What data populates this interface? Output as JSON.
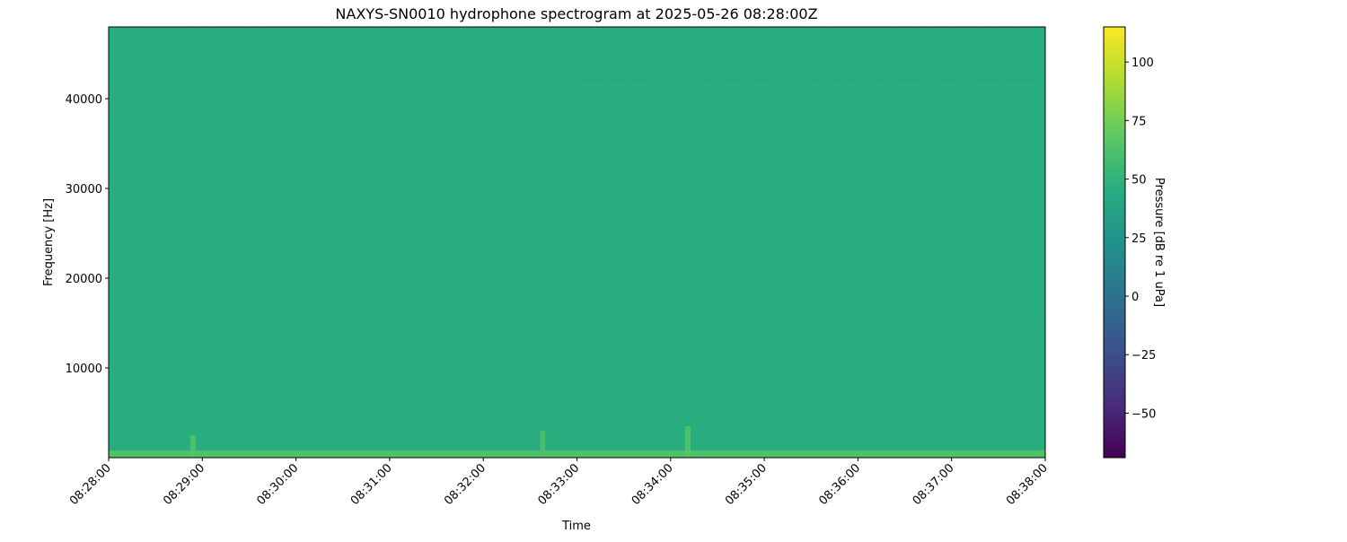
{
  "chart_data": {
    "type": "heatmap",
    "title": "NAXYS-SN0010 hydrophone spectrogram at 2025-05-26 08:28:00Z",
    "xlabel": "Time",
    "ylabel": "Frequency [Hz]",
    "x_ticks": [
      "08:28:00",
      "08:29:00",
      "08:30:00",
      "08:31:00",
      "08:32:00",
      "08:33:00",
      "08:34:00",
      "08:35:00",
      "08:36:00",
      "08:37:00",
      "08:38:00"
    ],
    "xlim_seconds_from_08_28_00": [
      0,
      600
    ],
    "y_ticks": [
      10000,
      20000,
      30000,
      40000
    ],
    "ylim": [
      0,
      48000
    ],
    "colorbar": {
      "label": "Pressure [dB re 1 uPa]",
      "colormap": "viridis",
      "range": [
        -69,
        115
      ],
      "ticks": [
        -50,
        -25,
        0,
        25,
        50,
        75,
        100
      ]
    },
    "background_level_db": 45,
    "low_frequency_band": {
      "freq_range": [
        0,
        800
      ],
      "level_db": 62
    },
    "tonal_lines": [
      {
        "time_range": [
          "08:28:00",
          "08:32:50"
        ],
        "freq": 43500,
        "level_db": 48
      },
      {
        "time_range": [
          "08:33:00",
          "08:38:00"
        ],
        "freq": 41500,
        "level_db": 48
      },
      {
        "time_range": [
          "08:28:00",
          "08:38:00"
        ],
        "freq": 12500,
        "level_db": 47
      }
    ],
    "transients": [
      {
        "time": "08:28:54",
        "freq_max": 2500,
        "level_db": 65
      },
      {
        "time": "08:32:38",
        "freq_max": 3000,
        "level_db": 62
      },
      {
        "time": "08:34:11",
        "freq_max": 3500,
        "level_db": 66
      }
    ]
  }
}
